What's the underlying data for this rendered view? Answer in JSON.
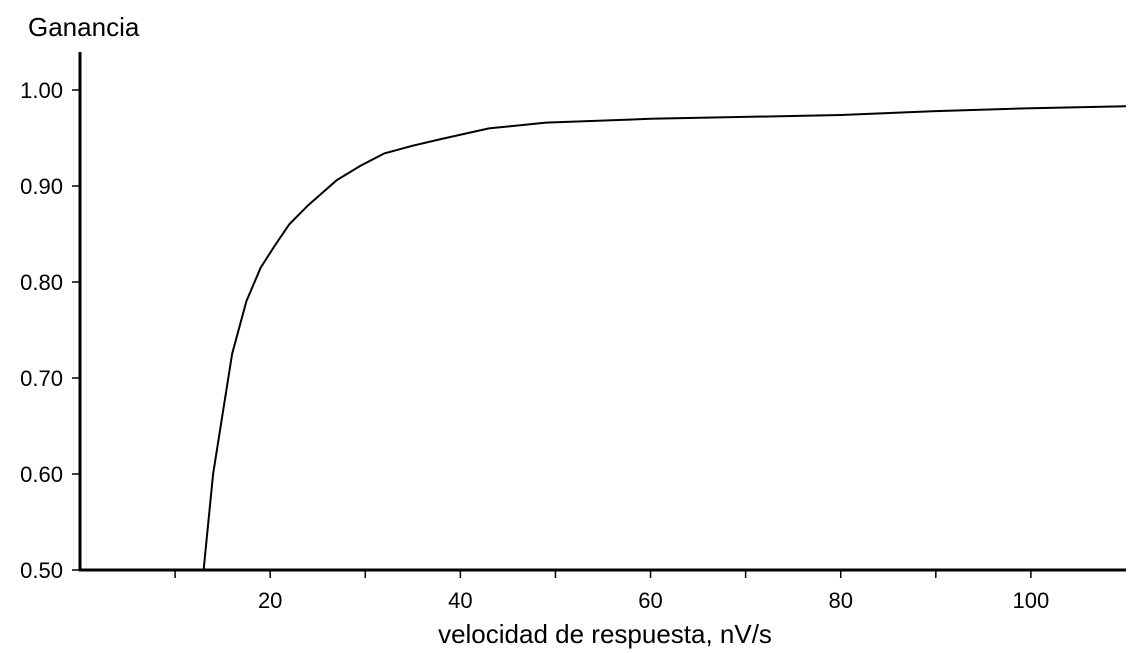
{
  "chart_data": {
    "type": "line",
    "title": "",
    "ylabel": "Ganancia",
    "xlabel": "velocidad de respuesta, nV/s",
    "xlim": [
      0,
      110
    ],
    "ylim": [
      0.5,
      1.0
    ],
    "x_ticks": [
      10,
      20,
      30,
      40,
      50,
      60,
      70,
      80,
      90,
      100
    ],
    "x_tick_labels": [
      {
        "value": 20,
        "label": "20"
      },
      {
        "value": 40,
        "label": "40"
      },
      {
        "value": 60,
        "label": "60"
      },
      {
        "value": 80,
        "label": "80"
      },
      {
        "value": 100,
        "label": "100"
      }
    ],
    "y_tick_labels": [
      {
        "value": 0.5,
        "label": "0.50"
      },
      {
        "value": 0.6,
        "label": "0.60"
      },
      {
        "value": 0.7,
        "label": "0.70"
      },
      {
        "value": 0.8,
        "label": "0.80"
      },
      {
        "value": 0.9,
        "label": "0.90"
      },
      {
        "value": 1.0,
        "label": "1.00"
      }
    ],
    "grid": false,
    "legend": "none",
    "series": [
      {
        "x": [
          13,
          14,
          16,
          17.5,
          19,
          20.5,
          22,
          24,
          27,
          29.5,
          32,
          35,
          38,
          43,
          49,
          60,
          80,
          90,
          100,
          110
        ],
        "y": [
          0.5,
          0.6,
          0.725,
          0.78,
          0.815,
          0.838,
          0.86,
          0.88,
          0.906,
          0.921,
          0.934,
          0.942,
          0.949,
          0.96,
          0.966,
          0.97,
          0.974,
          0.978,
          0.981,
          0.983
        ]
      }
    ]
  }
}
